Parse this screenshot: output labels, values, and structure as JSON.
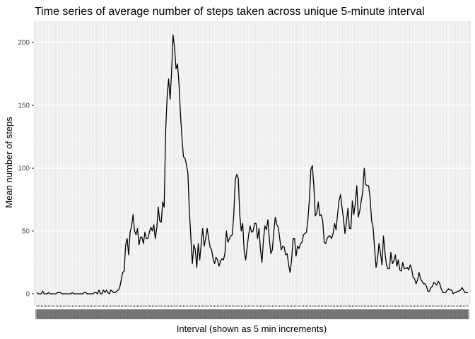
{
  "chart_data": {
    "type": "line",
    "title": "Time series of average number of steps taken across unique 5-minute interval",
    "xlabel": "Interval (shown as 5 min increments)",
    "ylabel": "Mean number of steps",
    "ylim": [
      -9,
      217
    ],
    "yticks": [
      0,
      50,
      100,
      150,
      200
    ],
    "grid": true,
    "x_tick_count": 288,
    "x_tick_labels_unreadable": true,
    "line_color": "#000000",
    "panel_color": "#ebebeb",
    "series": [
      {
        "values": [
          1,
          0,
          0,
          0,
          2,
          0,
          0,
          0,
          1,
          0,
          0,
          0,
          0,
          0,
          1,
          1,
          1,
          0,
          0,
          0,
          0,
          0,
          0,
          0,
          1,
          0,
          0,
          0,
          0,
          0,
          0,
          0,
          1,
          1,
          0,
          0,
          0,
          0,
          0,
          1,
          1,
          0,
          3,
          0,
          0,
          3,
          1,
          3,
          1,
          0,
          3,
          2,
          1,
          1,
          2,
          3,
          5,
          11,
          17,
          18,
          39,
          44,
          31,
          49,
          54,
          63,
          50,
          47,
          52,
          39,
          45,
          45,
          40,
          49,
          44,
          44,
          49,
          53,
          50,
          55,
          44,
          52,
          69,
          58,
          57,
          73,
          69,
          130,
          157,
          171,
          155,
          177,
          206,
          196,
          179,
          183,
          167,
          143,
          124,
          109,
          108,
          103,
          96,
          66,
          45,
          24,
          39,
          35,
          21,
          40,
          27,
          40,
          52,
          38,
          44,
          52,
          44,
          37,
          35,
          28,
          24,
          29,
          27,
          22,
          26,
          28,
          27,
          32,
          50,
          41,
          44,
          46,
          47,
          64,
          91,
          95,
          92,
          63,
          50,
          56,
          34,
          27,
          37,
          47,
          54,
          49,
          50,
          56,
          56,
          44,
          52,
          35,
          25,
          43,
          54,
          51,
          59,
          43,
          32,
          35,
          50,
          61,
          55,
          53,
          44,
          35,
          38,
          37,
          31,
          32,
          23,
          17,
          27,
          44,
          44,
          30,
          38,
          36,
          40,
          41,
          47,
          48,
          49,
          59,
          75,
          99,
          102,
          86,
          62,
          64,
          73,
          62,
          63,
          58,
          41,
          40,
          44,
          46,
          46,
          44,
          48,
          56,
          51,
          63,
          74,
          79,
          69,
          60,
          48,
          57,
          68,
          52,
          52,
          74,
          63,
          72,
          86,
          61,
          66,
          74,
          81,
          100,
          87,
          86,
          86,
          76,
          58,
          53,
          36,
          21,
          28,
          40,
          32,
          23,
          46,
          33,
          23,
          20,
          20,
          33,
          24,
          26,
          31,
          22,
          27,
          19,
          18,
          25,
          20,
          20,
          21,
          19,
          23,
          20,
          13,
          12,
          8,
          11,
          17,
          12,
          10,
          8,
          8,
          6,
          2,
          2,
          5,
          6,
          9,
          8,
          7,
          10,
          8,
          4,
          1,
          1,
          1,
          3,
          4,
          3,
          3,
          0,
          1,
          1,
          2,
          2,
          3,
          5,
          3,
          1,
          1,
          1
        ]
      }
    ]
  }
}
